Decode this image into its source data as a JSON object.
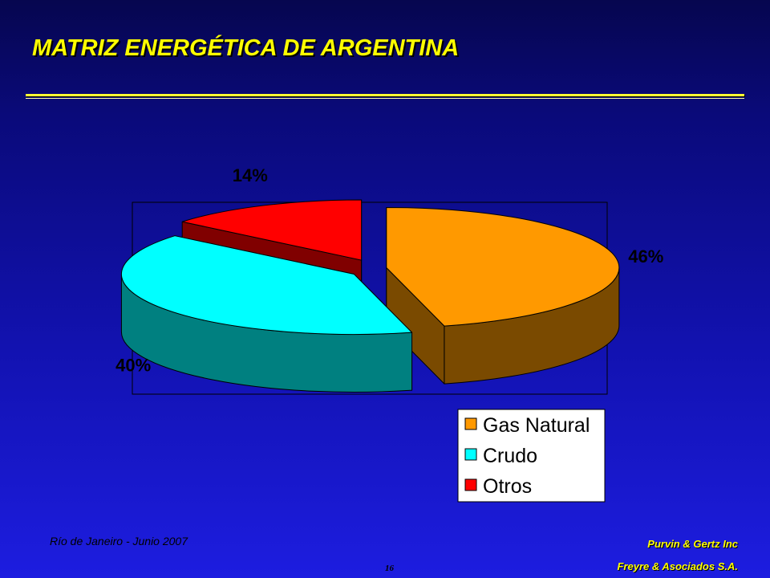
{
  "slide": {
    "title": "MATRIZ ENERGÉTICA DE ARGENTINA",
    "footer_left": "Río de Janeiro - Junio 2007",
    "footer_right_line1": "Purvin & Gertz Inc",
    "footer_right_line2": "Freyre & Asociados S.A.",
    "page_number": "16"
  },
  "chart_data": {
    "type": "pie",
    "style": "3d-exploded",
    "title": "",
    "slices": [
      {
        "label": "Gas Natural",
        "value": 46,
        "display": "46%",
        "color": "#ff9900",
        "side_color": "#7a4a00"
      },
      {
        "label": "Crudo",
        "value": 40,
        "display": "40%",
        "color": "#00ffff",
        "side_color": "#008080"
      },
      {
        "label": "Otros",
        "value": 14,
        "display": "14%",
        "color": "#ff0000",
        "side_color": "#800000"
      }
    ],
    "legend": {
      "placement": "bottom-right",
      "items": [
        "Gas Natural",
        "Crudo",
        "Otros"
      ]
    }
  }
}
